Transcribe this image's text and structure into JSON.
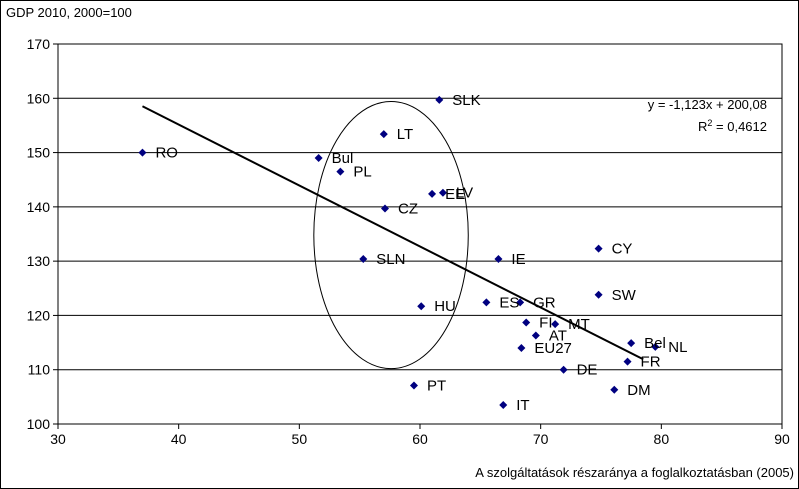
{
  "chart_data": {
    "type": "scatter",
    "ylabel": "GDP 2010, 2000=100",
    "xlabel": "A szolgáltatások részaránya a foglalkoztatásban (2005)",
    "xlim": [
      30,
      90
    ],
    "ylim": [
      100,
      170
    ],
    "xticks": [
      "30",
      "40",
      "50",
      "60",
      "70",
      "80",
      "90"
    ],
    "yticks": [
      "100",
      "110",
      "120",
      "130",
      "140",
      "150",
      "160",
      "170"
    ],
    "grid": "horizontal",
    "marker_color": "#000080",
    "points": [
      {
        "label": "RO",
        "x": 37,
        "y": 150
      },
      {
        "label": "Bul",
        "x": 51.6,
        "y": 149
      },
      {
        "label": "PL",
        "x": 53.4,
        "y": 146.5
      },
      {
        "label": "LT",
        "x": 57.0,
        "y": 153.4
      },
      {
        "label": "SLK",
        "x": 61.6,
        "y": 159.7
      },
      {
        "label": "EE",
        "x": 61.0,
        "y": 142.4
      },
      {
        "label": "LV",
        "x": 61.9,
        "y": 142.6
      },
      {
        "label": "CZ",
        "x": 57.1,
        "y": 139.7
      },
      {
        "label": "SLN",
        "x": 55.3,
        "y": 130.4
      },
      {
        "label": "HU",
        "x": 60.1,
        "y": 121.7
      },
      {
        "label": "IE",
        "x": 66.5,
        "y": 130.4
      },
      {
        "label": "ES",
        "x": 65.5,
        "y": 122.4
      },
      {
        "label": "GR",
        "x": 68.3,
        "y": 122.4
      },
      {
        "label": "FI",
        "x": 68.8,
        "y": 118.7
      },
      {
        "label": "MT",
        "x": 71.2,
        "y": 118.4
      },
      {
        "label": "AT",
        "x": 69.6,
        "y": 116.3
      },
      {
        "label": "EU27",
        "x": 68.4,
        "y": 114.0
      },
      {
        "label": "CY",
        "x": 74.8,
        "y": 132.3
      },
      {
        "label": "SW",
        "x": 74.8,
        "y": 123.8
      },
      {
        "label": "Bel",
        "x": 77.5,
        "y": 114.9
      },
      {
        "label": "NL",
        "x": 79.5,
        "y": 114.2
      },
      {
        "label": "FR",
        "x": 77.2,
        "y": 111.5
      },
      {
        "label": "DE",
        "x": 71.9,
        "y": 110.0
      },
      {
        "label": "DM",
        "x": 76.1,
        "y": 106.3
      },
      {
        "label": "PT",
        "x": 59.5,
        "y": 107.1
      },
      {
        "label": "IT",
        "x": 66.9,
        "y": 103.5
      }
    ],
    "trendline": {
      "slope": -1.123,
      "intercept": 200.08,
      "x_range": [
        37,
        78.5
      ],
      "equation": "y = -1,123x + 200,08",
      "r2_prefix": "R",
      "r2_sup": "2",
      "r2_value": " = 0,4612"
    },
    "annotation_ellipse": {
      "cx": 57.6,
      "cy": 134.8,
      "rx": 6.4,
      "ry": 24.6
    }
  }
}
